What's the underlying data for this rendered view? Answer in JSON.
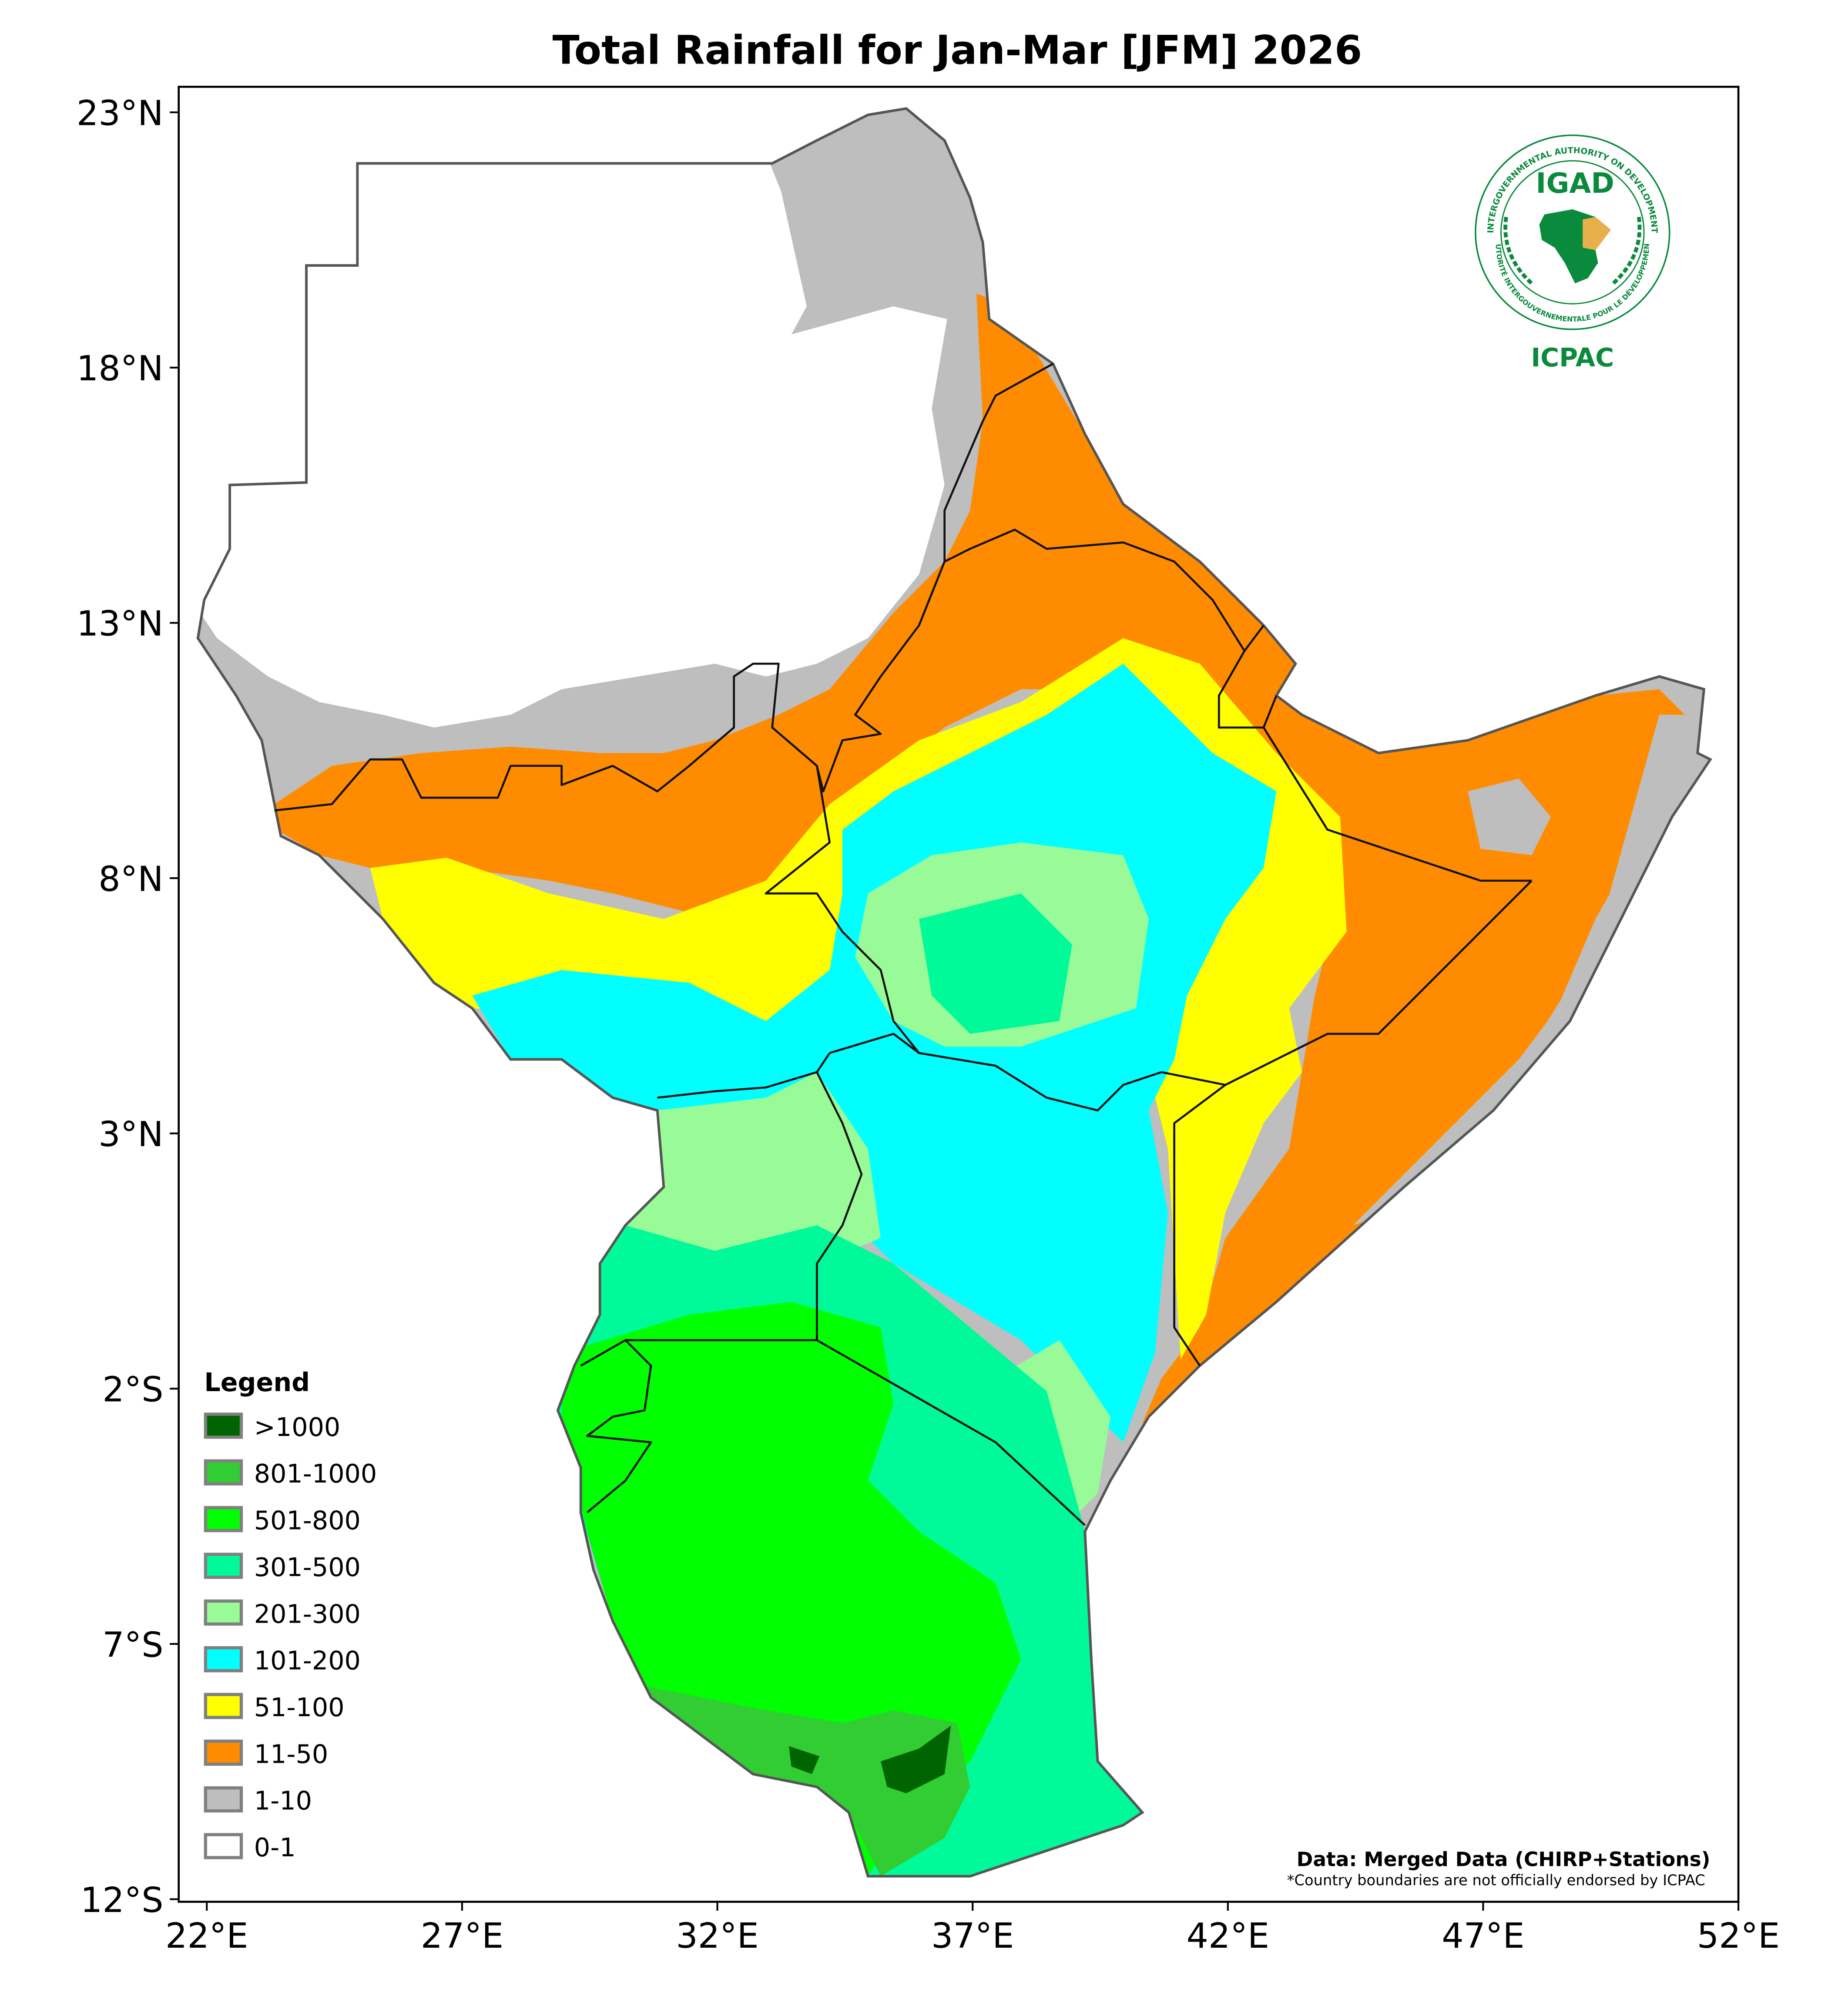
{
  "title": "Total Rainfall for Jan-Mar [JFM] 2026",
  "logo": {
    "name": "IGAD",
    "subname": "ICPAC",
    "ring_top": "INTERGOVERNMENTAL AUTHORITY ON DEVELOPMENT",
    "ring_bottom": "AUTORITÉ INTERGOUVERNEMENTALE POUR LE DÉVELOPPEMENT",
    "green": "#0a8a3c",
    "gold": "#e8b04a"
  },
  "source_note": "Data: Merged Data (CHIRP+Stations)",
  "disclaimer": "*Country boundaries are not officially endorsed by ICPAC",
  "chart_data": {
    "type": "map",
    "title": "Total Rainfall for Jan-Mar [JFM] 2026",
    "xlabel": "",
    "ylabel": "",
    "xlim": [
      21.45,
      52
    ],
    "ylim": [
      -12,
      23.5
    ],
    "x_ticks": [
      {
        "value": 22,
        "label": "22°E"
      },
      {
        "value": 27,
        "label": "27°E"
      },
      {
        "value": 32,
        "label": "32°E"
      },
      {
        "value": 37,
        "label": "37°E"
      },
      {
        "value": 42,
        "label": "42°E"
      },
      {
        "value": 47,
        "label": "47°E"
      },
      {
        "value": 52,
        "label": "52°E"
      }
    ],
    "y_ticks": [
      {
        "value": 23,
        "label": "23°N"
      },
      {
        "value": 18,
        "label": "18°N"
      },
      {
        "value": 13,
        "label": "13°N"
      },
      {
        "value": 8,
        "label": "8°N"
      },
      {
        "value": 3,
        "label": "3°N"
      },
      {
        "value": -2,
        "label": "2°S"
      },
      {
        "value": -7,
        "label": "7°S"
      },
      {
        "value": -12,
        "label": "12°S"
      }
    ],
    "legend": {
      "title": "Legend",
      "placement": "bottom-left",
      "items": [
        {
          "label": ">1000",
          "color": "#006400"
        },
        {
          "label": "801-1000",
          "color": "#32cd32"
        },
        {
          "label": "501-800",
          "color": "#00ff00"
        },
        {
          "label": "301-500",
          "color": "#00fa9a"
        },
        {
          "label": "201-300",
          "color": "#98fb98"
        },
        {
          "label": "101-200",
          "color": "#00ffff"
        },
        {
          "label": "51-100",
          "color": "#ffff00"
        },
        {
          "label": "11-50",
          "color": "#ff8c00"
        },
        {
          "label": "1-10",
          "color": "#bebebe"
        },
        {
          "label": "0-1",
          "color": "#ffffff"
        }
      ]
    },
    "grid": false
  }
}
